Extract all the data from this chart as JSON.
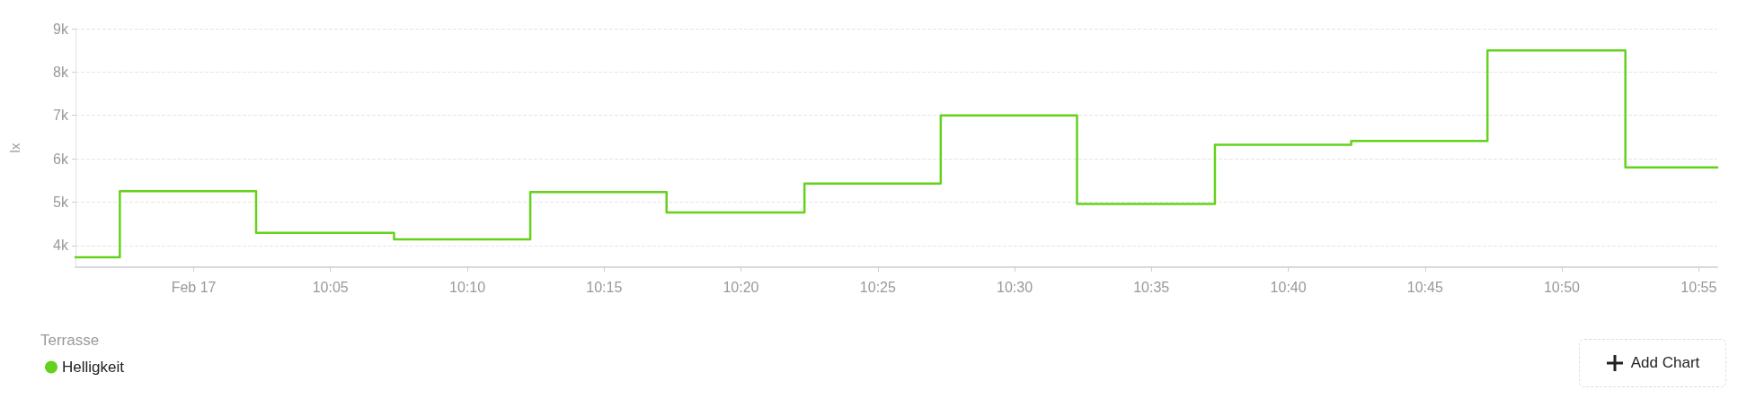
{
  "chart_data": {
    "type": "step",
    "ylabel": "lx",
    "legend_title": "Terrasse",
    "annotations": [
      "Add Chart"
    ],
    "x": [
      9.928,
      9.955,
      10.038,
      10.122,
      10.205,
      10.288,
      10.372,
      10.455,
      10.538,
      10.622,
      10.705,
      10.788,
      10.872,
      10.928
    ],
    "series": [
      {
        "name": "Helligkeit",
        "color": "#64d21c",
        "values": [
          3730,
          5250,
          4290,
          4140,
          5230,
          4760,
          5430,
          7000,
          4960,
          6320,
          6410,
          8500,
          5800,
          5800
        ]
      }
    ],
    "xlim": [
      9.928,
      10.928
    ],
    "xticks": [
      {
        "value": 10,
        "label": "Feb 17"
      },
      {
        "value": 10.0833,
        "label": "10:05"
      },
      {
        "value": 10.1667,
        "label": "10:10"
      },
      {
        "value": 10.25,
        "label": "10:15"
      },
      {
        "value": 10.3333,
        "label": "10:20"
      },
      {
        "value": 10.4167,
        "label": "10:25"
      },
      {
        "value": 10.5,
        "label": "10:30"
      },
      {
        "value": 10.5833,
        "label": "10:35"
      },
      {
        "value": 10.6667,
        "label": "10:40"
      },
      {
        "value": 10.75,
        "label": "10:45"
      },
      {
        "value": 10.8333,
        "label": "10:50"
      },
      {
        "value": 10.9167,
        "label": "10:55"
      }
    ],
    "ylim": [
      3500,
      9000
    ],
    "yticks": [
      {
        "value": 4000,
        "label": "4k"
      },
      {
        "value": 5000,
        "label": "5k"
      },
      {
        "value": 6000,
        "label": "6k"
      },
      {
        "value": 7000,
        "label": "7k"
      },
      {
        "value": 8000,
        "label": "8k"
      },
      {
        "value": 9000,
        "label": "9k"
      }
    ],
    "grid": "y",
    "legend": "bottom left",
    "marker": "none",
    "line_style": "solid"
  }
}
